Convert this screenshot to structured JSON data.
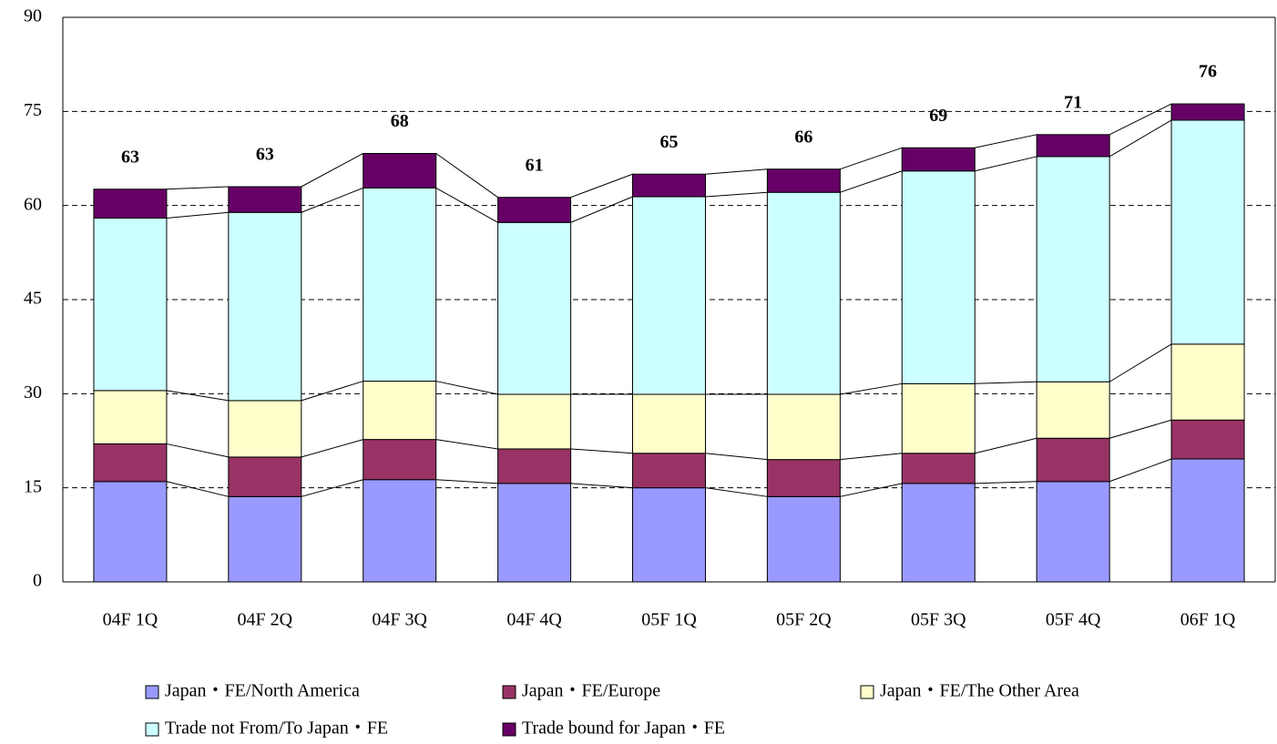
{
  "chart_data": {
    "type": "stacked_bar",
    "categories": [
      "04F 1Q",
      "04F 2Q",
      "04F 3Q",
      "04F 4Q",
      "05F 1Q",
      "05F 2Q",
      "05F 3Q",
      "05F 4Q",
      "06F 1Q"
    ],
    "series": [
      {
        "name": "Japan・FE/North America",
        "color": "#9999ff",
        "values": [
          16.0,
          13.6,
          16.3,
          15.7,
          15.0,
          13.6,
          15.7,
          16.0,
          19.6
        ]
      },
      {
        "name": "Japan・FE/Europe",
        "color": "#993366",
        "values": [
          6.0,
          6.3,
          6.4,
          5.5,
          5.5,
          5.9,
          4.8,
          6.9,
          6.2
        ]
      },
      {
        "name": "Japan・FE/The Other Area",
        "color": "#ffffcc",
        "values": [
          8.5,
          9.0,
          9.3,
          8.7,
          9.4,
          10.4,
          11.1,
          9.0,
          12.1
        ]
      },
      {
        "name": "Trade not From/To Japan・FE",
        "color": "#ccffff",
        "values": [
          27.5,
          30.0,
          30.8,
          27.4,
          31.5,
          32.2,
          33.9,
          35.9,
          35.7
        ]
      },
      {
        "name": "Trade bound for Japan・FE",
        "color": "#660066",
        "values": [
          4.6,
          4.1,
          5.5,
          4.0,
          3.6,
          3.7,
          3.7,
          3.5,
          2.6
        ]
      }
    ],
    "totals": [
      63,
      63,
      68,
      61,
      65,
      66,
      69,
      71,
      76
    ],
    "ylim": [
      0,
      90
    ],
    "yticks": [
      0,
      15,
      30,
      45,
      60,
      75,
      90
    ],
    "grid": true
  }
}
